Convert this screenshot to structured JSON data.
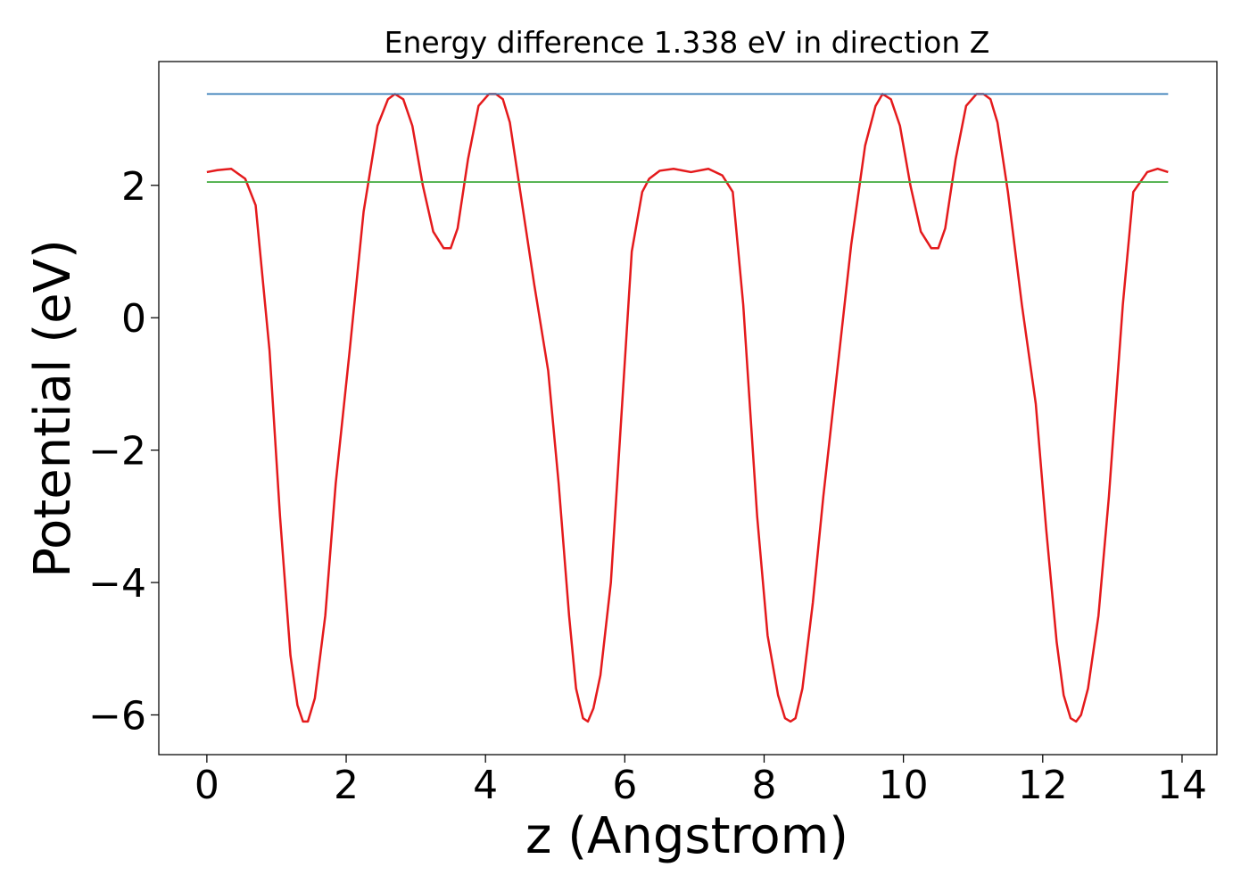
{
  "chart_data": {
    "type": "line",
    "title": "Energy difference 1.338 eV in direction Z",
    "xlabel": "z (Angstrom)",
    "ylabel": "Potential (eV)",
    "xlim": [
      -0.69,
      14.5
    ],
    "ylim": [
      -6.6,
      3.87
    ],
    "xticks": [
      0,
      2,
      4,
      6,
      8,
      10,
      12,
      14
    ],
    "xtick_labels": [
      "0",
      "2",
      "4",
      "6",
      "8",
      "10",
      "12",
      "14"
    ],
    "yticks": [
      2,
      0,
      -2,
      -4,
      -6
    ],
    "ytick_labels": [
      "2",
      "0",
      "−2",
      "−4",
      "−6"
    ],
    "grid": false,
    "legend": "none",
    "series": [
      {
        "color": "#e41a1c",
        "x": [
          0,
          0.15,
          0.35,
          0.55,
          0.7,
          0.9,
          1.05,
          1.2,
          1.3,
          1.38,
          1.45,
          1.55,
          1.7,
          1.85,
          2.05,
          2.25,
          2.45,
          2.6,
          2.7,
          2.82,
          2.95,
          3.1,
          3.25,
          3.4,
          3.5,
          3.6,
          3.75,
          3.9,
          4.05,
          4.15,
          4.25,
          4.35,
          4.5,
          4.7,
          4.9,
          5.05,
          5.2,
          5.3,
          5.4,
          5.47,
          5.55,
          5.65,
          5.8,
          5.95,
          6.1,
          6.25,
          6.35,
          6.5,
          6.7,
          6.95,
          7.2,
          7.4,
          7.55,
          7.7,
          7.9,
          8.05,
          8.2,
          8.3,
          8.38,
          8.45,
          8.55,
          8.7,
          8.85,
          9.05,
          9.25,
          9.45,
          9.6,
          9.7,
          9.82,
          9.95,
          10.1,
          10.25,
          10.4,
          10.5,
          10.6,
          10.75,
          10.9,
          11.05,
          11.15,
          11.25,
          11.35,
          11.5,
          11.7,
          11.9,
          12.05,
          12.2,
          12.3,
          12.4,
          12.48,
          12.55,
          12.65,
          12.8,
          12.95,
          13.15,
          13.3,
          13.5,
          13.65,
          13.8
        ],
        "y": [
          2.2,
          2.23,
          2.25,
          2.1,
          1.7,
          -0.5,
          -3.0,
          -5.1,
          -5.85,
          -6.1,
          -6.1,
          -5.75,
          -4.5,
          -2.5,
          -0.5,
          1.6,
          2.9,
          3.3,
          3.38,
          3.3,
          2.9,
          2.0,
          1.3,
          1.05,
          1.05,
          1.35,
          2.4,
          3.2,
          3.38,
          3.38,
          3.3,
          2.95,
          1.9,
          0.5,
          -0.8,
          -2.5,
          -4.5,
          -5.6,
          -6.05,
          -6.1,
          -5.9,
          -5.4,
          -4.0,
          -1.5,
          1.0,
          1.9,
          2.1,
          2.22,
          2.25,
          2.2,
          2.25,
          2.15,
          1.9,
          0.2,
          -3.0,
          -4.8,
          -5.7,
          -6.05,
          -6.1,
          -6.05,
          -5.6,
          -4.3,
          -2.7,
          -0.8,
          1.1,
          2.6,
          3.2,
          3.38,
          3.3,
          2.9,
          2.0,
          1.3,
          1.05,
          1.05,
          1.35,
          2.4,
          3.2,
          3.38,
          3.38,
          3.3,
          2.95,
          1.9,
          0.2,
          -1.3,
          -3.2,
          -4.9,
          -5.7,
          -6.05,
          -6.1,
          -6.0,
          -5.6,
          -4.5,
          -2.7,
          0.2,
          1.9,
          2.2,
          2.25,
          2.2
        ]
      },
      {
        "color": "#377eb8",
        "x": [
          0,
          13.8
        ],
        "y": [
          3.38,
          3.38
        ]
      },
      {
        "color": "#4daf4a",
        "x": [
          0,
          13.8
        ],
        "y": [
          2.05,
          2.05
        ]
      }
    ]
  }
}
